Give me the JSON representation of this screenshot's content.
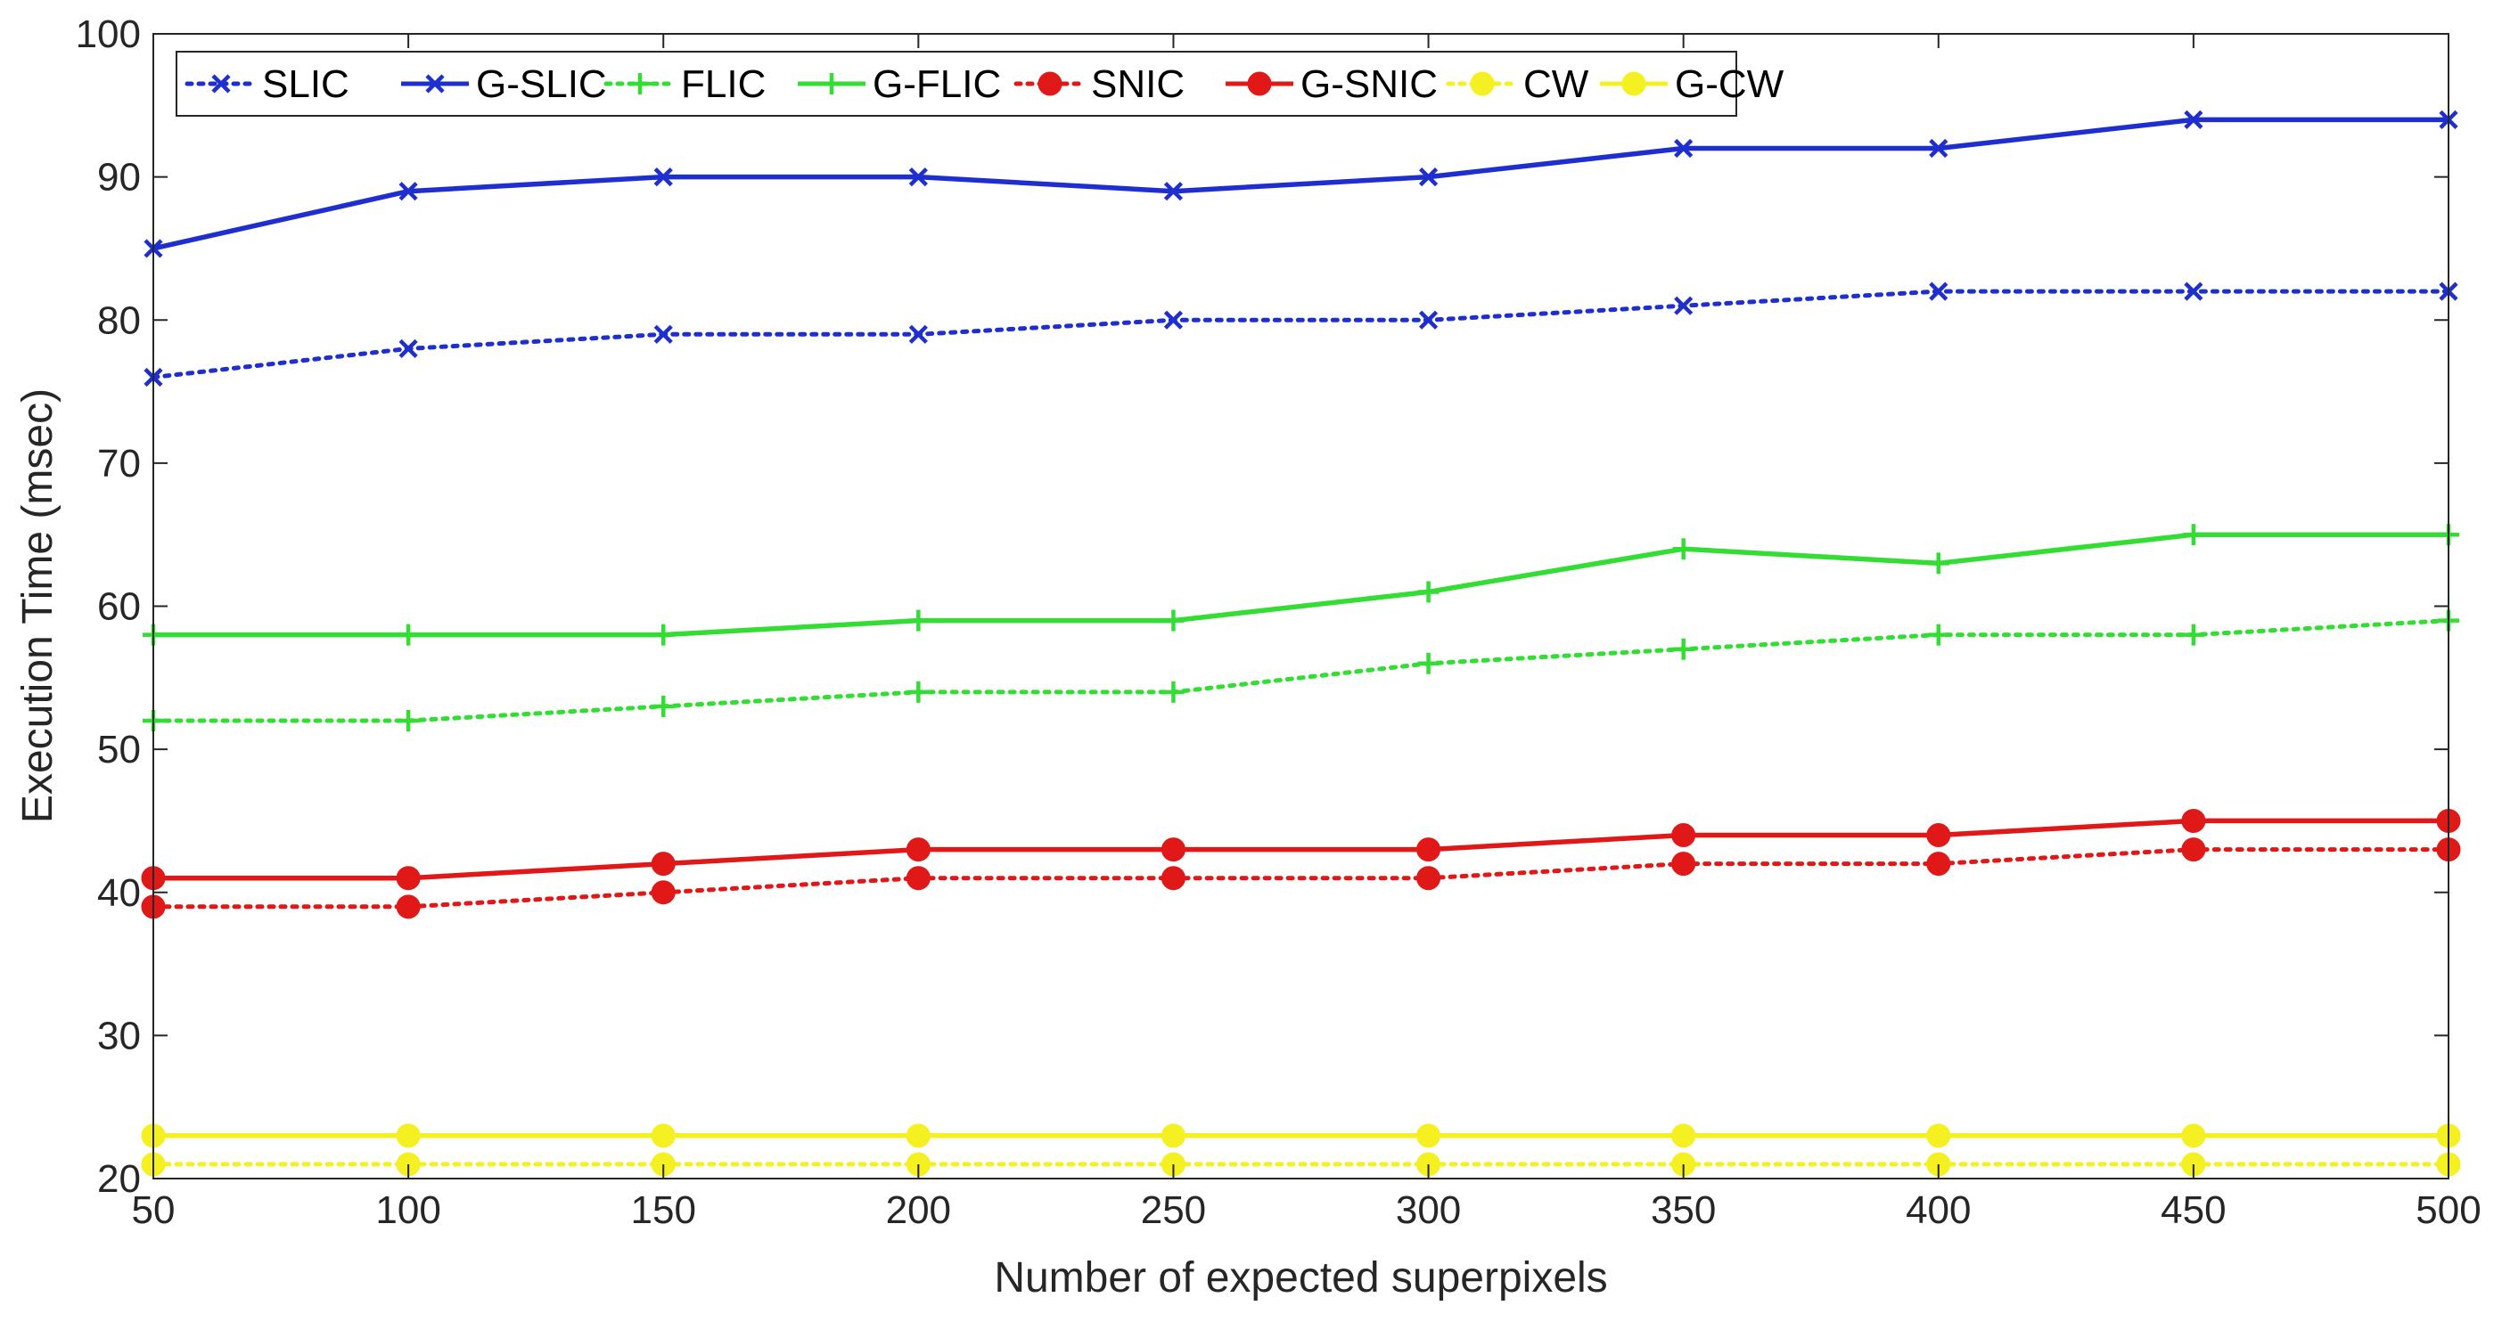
{
  "chart_data": {
    "type": "line",
    "title": "",
    "xlabel": "Number of expected superpixels",
    "ylabel": "Execution Time (msec)",
    "x": [
      50,
      100,
      150,
      200,
      250,
      300,
      350,
      400,
      450,
      500
    ],
    "xlim": [
      50,
      500
    ],
    "ylim": [
      20,
      100
    ],
    "xticks": [
      50,
      100,
      150,
      200,
      250,
      300,
      350,
      400,
      450,
      500
    ],
    "yticks": [
      20,
      30,
      40,
      50,
      60,
      70,
      80,
      90,
      100
    ],
    "grid": false,
    "legend_position": "top-left",
    "series": [
      {
        "name": "SLIC",
        "color": "#1f2fcf",
        "line_style": "dotted",
        "marker": "x-cross",
        "values": [
          76,
          78,
          79,
          79,
          80,
          80,
          81,
          82,
          82,
          82
        ]
      },
      {
        "name": "G-SLIC",
        "color": "#1f2fcf",
        "line_style": "solid",
        "marker": "x-cross",
        "values": [
          85,
          89,
          90,
          90,
          89,
          90,
          92,
          92,
          94,
          94
        ]
      },
      {
        "name": "FLIC",
        "color": "#33dd33",
        "line_style": "dotted",
        "marker": "plus",
        "values": [
          52,
          52,
          53,
          54,
          54,
          56,
          57,
          58,
          58,
          59
        ]
      },
      {
        "name": "G-FLIC",
        "color": "#33dd33",
        "line_style": "solid",
        "marker": "plus",
        "values": [
          58,
          58,
          58,
          59,
          59,
          61,
          64,
          63,
          65,
          65
        ]
      },
      {
        "name": "SNIC",
        "color": "#e01818",
        "line_style": "dotted",
        "marker": "dot",
        "values": [
          39,
          39,
          40,
          41,
          41,
          41,
          42,
          42,
          43,
          43
        ]
      },
      {
        "name": "G-SNIC",
        "color": "#e01818",
        "line_style": "solid",
        "marker": "dot",
        "values": [
          41,
          41,
          42,
          43,
          43,
          43,
          44,
          44,
          45,
          45
        ]
      },
      {
        "name": "CW",
        "color": "#f5f022",
        "line_style": "dotted",
        "marker": "dot",
        "values": [
          21,
          21,
          21,
          21,
          21,
          21,
          21,
          21,
          21,
          21
        ]
      },
      {
        "name": "G-CW",
        "color": "#f5f022",
        "line_style": "solid",
        "marker": "dot",
        "values": [
          23,
          23,
          23,
          23,
          23,
          23,
          23,
          23,
          23,
          23
        ]
      }
    ]
  }
}
